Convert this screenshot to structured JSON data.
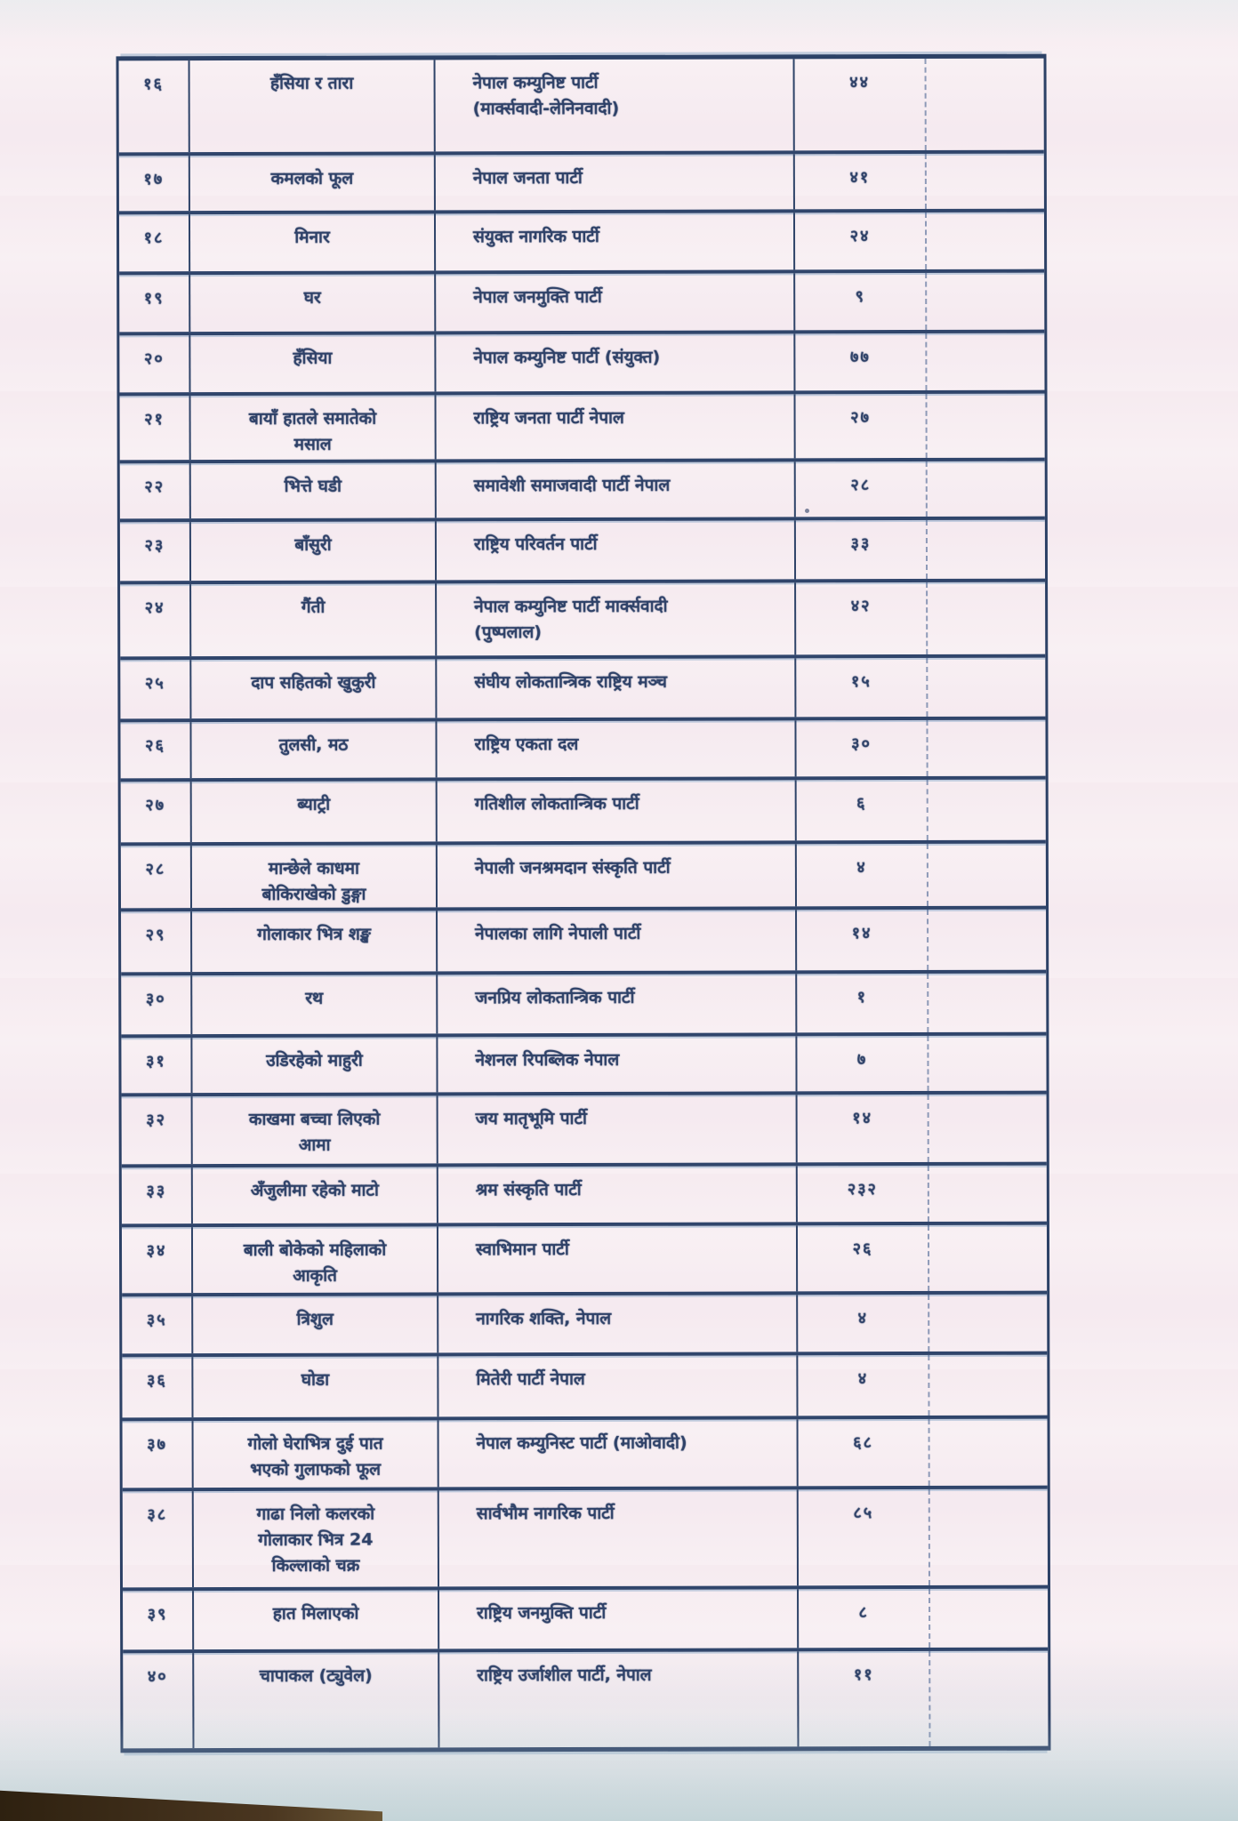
{
  "colors": {
    "paper": "#f6edf1",
    "ink": "#2e4168",
    "rule_line": "#30456b",
    "corner_artifact": "#3a2c18"
  },
  "table": {
    "rows": [
      {
        "sn": "१६",
        "symbol": "हँसिया र तारा",
        "party": "नेपाल कम्युनिष्ट पार्टी\n(मार्क्सवादी-लेनिनवादी)",
        "count": "४४"
      },
      {
        "sn": "१७",
        "symbol": "कमलको फूल",
        "party": "नेपाल जनता पार्टी",
        "count": "४१"
      },
      {
        "sn": "१८",
        "symbol": "मिनार",
        "party": "संयुक्त नागरिक पार्टी",
        "count": "२४"
      },
      {
        "sn": "१९",
        "symbol": "घर",
        "party": "नेपाल जनमुक्ति पार्टी",
        "count": "९"
      },
      {
        "sn": "२०",
        "symbol": "हँसिया",
        "party": "नेपाल कम्युनिष्ट पार्टी (संयुक्त)",
        "count": "७७"
      },
      {
        "sn": "२१",
        "symbol": "बायाँ हातले समातेको\nमसाल",
        "party": "राष्ट्रिय जनता पार्टी नेपाल",
        "count": "२७"
      },
      {
        "sn": "२२",
        "symbol": "भित्ते घडी",
        "party": "समावेशी समाजवादी पार्टी नेपाल",
        "count": "२८"
      },
      {
        "sn": "२३",
        "symbol": "बाँसुरी",
        "party": "राष्ट्रिय परिवर्तन पार्टी",
        "count": "३३"
      },
      {
        "sn": "२४",
        "symbol": "गैंती",
        "party": "नेपाल कम्युनिष्ट पार्टी मार्क्सवादी\n(पुष्पलाल)",
        "count": "४२"
      },
      {
        "sn": "२५",
        "symbol": "दाप सहितको खुकुरी",
        "party": "संघीय लोकतान्त्रिक राष्ट्रिय मञ्च",
        "count": "१५"
      },
      {
        "sn": "२६",
        "symbol": "तुलसी, मठ",
        "party": "राष्ट्रिय एकता दल",
        "count": "३०"
      },
      {
        "sn": "२७",
        "symbol": "ब्याट्री",
        "party": "गतिशील लोकतान्त्रिक पार्टी",
        "count": "६"
      },
      {
        "sn": "२८",
        "symbol": "मान्छेले काधमा\nबोकिराखेको डुङ्गा",
        "party": "नेपाली जनश्रमदान संस्कृति पार्टी",
        "count": "४"
      },
      {
        "sn": "२९",
        "symbol": "गोलाकार भित्र शङ्ख",
        "party": "नेपालका लागि नेपाली पार्टी",
        "count": "१४"
      },
      {
        "sn": "३०",
        "symbol": "रथ",
        "party": "जनप्रिय लोकतान्त्रिक पार्टी",
        "count": "१"
      },
      {
        "sn": "३१",
        "symbol": "उडिरहेको माहुरी",
        "party": "नेशनल रिपब्लिक नेपाल",
        "count": "७"
      },
      {
        "sn": "३२",
        "symbol": "काखमा बच्चा लिएको\nआमा",
        "party": "जय मातृभूमि पार्टी",
        "count": "१४"
      },
      {
        "sn": "३३",
        "symbol": "अँजुलीमा रहेको माटो",
        "party": "श्रम संस्कृति पार्टी",
        "count": "२३२"
      },
      {
        "sn": "३४",
        "symbol": "बाली बोकेको महिलाको\nआकृति",
        "party": "स्वाभिमान पार्टी",
        "count": "२६"
      },
      {
        "sn": "३५",
        "symbol": "त्रिशुल",
        "party": "नागरिक शक्ति, नेपाल",
        "count": "४"
      },
      {
        "sn": "३६",
        "symbol": "घोडा",
        "party": "मितेरी पार्टी नेपाल",
        "count": "४"
      },
      {
        "sn": "३७",
        "symbol": "गोलो घेराभित्र दुई पात\nभएको गुलाफको फूल",
        "party": "नेपाल कम्युनिस्ट पार्टी (माओवादी)",
        "count": "६८"
      },
      {
        "sn": "३८",
        "symbol": "गाढा निलो कलरको\nगोलाकार भित्र 24\nकिल्लाको चक्र",
        "party": "सार्वभौम नागरिक पार्टी",
        "count": "८५"
      },
      {
        "sn": "३९",
        "symbol": "हात मिलाएको",
        "party": "राष्ट्रिय जनमुक्ति पार्टी",
        "count": "८"
      },
      {
        "sn": "४०",
        "symbol": "चापाकल (ट्युवेल)",
        "party": "राष्ट्रिय उर्जाशील पार्टी, नेपाल",
        "count": "११"
      }
    ]
  }
}
